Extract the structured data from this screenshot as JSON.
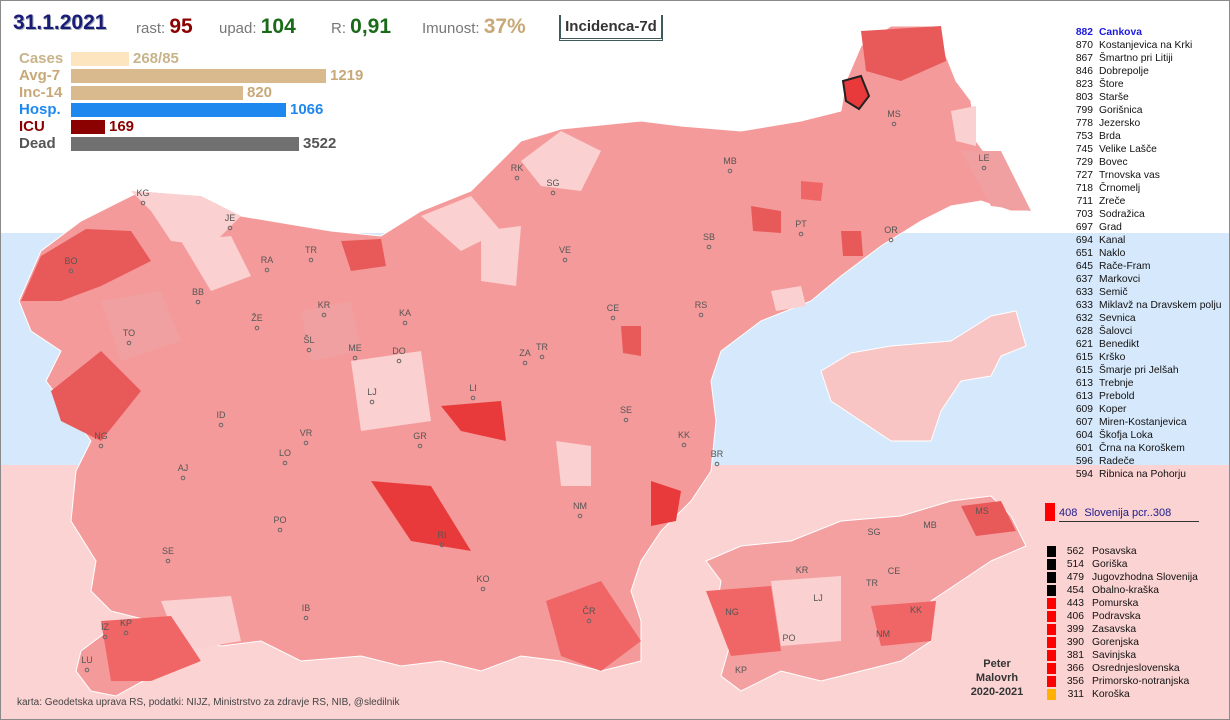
{
  "header": {
    "date": "31.1.2021",
    "rast_label": "rast:",
    "rast_value": "95",
    "upad_label": "upad:",
    "upad_value": "104",
    "r_label": "R:",
    "r_value": "0,91",
    "imunost_label": "Imunost:",
    "imunost_value": "37%",
    "incidence_button": "Incidenca-7d"
  },
  "stats": [
    {
      "label": "Cases",
      "value": "268/85",
      "amount": 85,
      "color": "#fde6bf",
      "label_color": "#c8b48a"
    },
    {
      "label": "Avg-7",
      "value": "1219",
      "amount": 1219,
      "color": "#d9b98e",
      "label_color": "#c8a878"
    },
    {
      "label": "Inc-14",
      "value": "820",
      "amount": 820,
      "color": "#d9b98e",
      "label_color": "#c8a878"
    },
    {
      "label": "Hosp.",
      "value": "1066",
      "amount": 1066,
      "color": "#1e88ee",
      "label_color": "#1e88ee"
    },
    {
      "label": "ICU",
      "value": "169",
      "amount": 169,
      "color": "#8b0000",
      "label_color": "#8b0000"
    },
    {
      "label": "Dead",
      "value": "3522",
      "amount": 3522,
      "color": "#707070",
      "label_color": "#555555"
    }
  ],
  "municipalities": [
    {
      "value": "882",
      "name": "Cankova",
      "highlight": true
    },
    {
      "value": "870",
      "name": "Kostanjevica na Krki"
    },
    {
      "value": "867",
      "name": "Šmartno pri Litiji"
    },
    {
      "value": "846",
      "name": "Dobrepolje"
    },
    {
      "value": "823",
      "name": "Štore"
    },
    {
      "value": "803",
      "name": "Starše"
    },
    {
      "value": "799",
      "name": "Gorišnica"
    },
    {
      "value": "778",
      "name": "Jezersko"
    },
    {
      "value": "753",
      "name": "Brda"
    },
    {
      "value": "745",
      "name": "Velike Lašče"
    },
    {
      "value": "729",
      "name": "Bovec"
    },
    {
      "value": "727",
      "name": "Trnovska vas"
    },
    {
      "value": "718",
      "name": "Črnomelj"
    },
    {
      "value": "711",
      "name": "Zreče"
    },
    {
      "value": "703",
      "name": "Sodražica"
    },
    {
      "value": "697",
      "name": "Grad"
    },
    {
      "value": "694",
      "name": "Kanal"
    },
    {
      "value": "651",
      "name": "Naklo"
    },
    {
      "value": "645",
      "name": "Rače-Fram"
    },
    {
      "value": "637",
      "name": "Markovci"
    },
    {
      "value": "633",
      "name": "Semič"
    },
    {
      "value": "633",
      "name": "Miklavž na Dravskem polju"
    },
    {
      "value": "632",
      "name": "Sevnica"
    },
    {
      "value": "628",
      "name": "Šalovci"
    },
    {
      "value": "621",
      "name": "Benedikt"
    },
    {
      "value": "615",
      "name": "Krško"
    },
    {
      "value": "615",
      "name": "Šmarje pri Jelšah"
    },
    {
      "value": "613",
      "name": "Trebnje"
    },
    {
      "value": "613",
      "name": "Prebold"
    },
    {
      "value": "609",
      "name": "Koper"
    },
    {
      "value": "607",
      "name": "Miren-Kostanjevica"
    },
    {
      "value": "604",
      "name": "Škofja Loka"
    },
    {
      "value": "601",
      "name": "Črna na Koroškem"
    },
    {
      "value": "596",
      "name": "Radeče"
    },
    {
      "value": "594",
      "name": "Ribnica na Pohorju"
    }
  ],
  "slovenia": {
    "value": "408",
    "label": "Slovenija  pcr..308",
    "color": "#ff0000"
  },
  "regions": [
    {
      "value": "562",
      "name": "Posavska",
      "color": "#000000"
    },
    {
      "value": "514",
      "name": "Goriška",
      "color": "#000000"
    },
    {
      "value": "479",
      "name": "Jugovzhodna Slovenija",
      "color": "#000000"
    },
    {
      "value": "454",
      "name": "Obalno-kraška",
      "color": "#000000"
    },
    {
      "value": "443",
      "name": "Pomurska",
      "color": "#ff0000"
    },
    {
      "value": "406",
      "name": "Podravska",
      "color": "#ff0000"
    },
    {
      "value": "399",
      "name": "Zasavska",
      "color": "#ff0000"
    },
    {
      "value": "390",
      "name": "Gorenjska",
      "color": "#ff0000"
    },
    {
      "value": "381",
      "name": "Savinjska",
      "color": "#ff0000"
    },
    {
      "value": "366",
      "name": "Osrednjeslovenska",
      "color": "#ff0000"
    },
    {
      "value": "356",
      "name": "Primorsko-notranjska",
      "color": "#ff0000"
    },
    {
      "value": "311",
      "name": "Koroška",
      "color": "#ffb000"
    }
  ],
  "map_labels": [
    "KG",
    "JE",
    "BO",
    "RA",
    "TR",
    "BB",
    "KR",
    "KA",
    "TO",
    "ŽE",
    "ŠL",
    "ME",
    "DO",
    "LJ",
    "ID",
    "VR",
    "GR",
    "NG",
    "LO",
    "AJ",
    "PO",
    "SE",
    "IB",
    "IZ",
    "KP",
    "LU",
    "RK",
    "SG",
    "MB",
    "VE",
    "SB",
    "CE",
    "RS",
    "ZA",
    "TR",
    "LI",
    "SE",
    "KK",
    "BR",
    "NM",
    "RI",
    "KO",
    "ČR",
    "PT",
    "OR",
    "MS",
    "LE"
  ],
  "region_map_labels": [
    "SG",
    "MB",
    "MS",
    "KR",
    "CE",
    "TR",
    "LJ",
    "NG",
    "KK",
    "PO",
    "NM",
    "KP"
  ],
  "author": [
    "Peter",
    "Malovrh",
    "2020-2021"
  ],
  "credits": "karta: Geodetska uprava RS,  podatki: NIJZ, Ministrstvo za zdravje RS, NIB, @sledilnik"
}
